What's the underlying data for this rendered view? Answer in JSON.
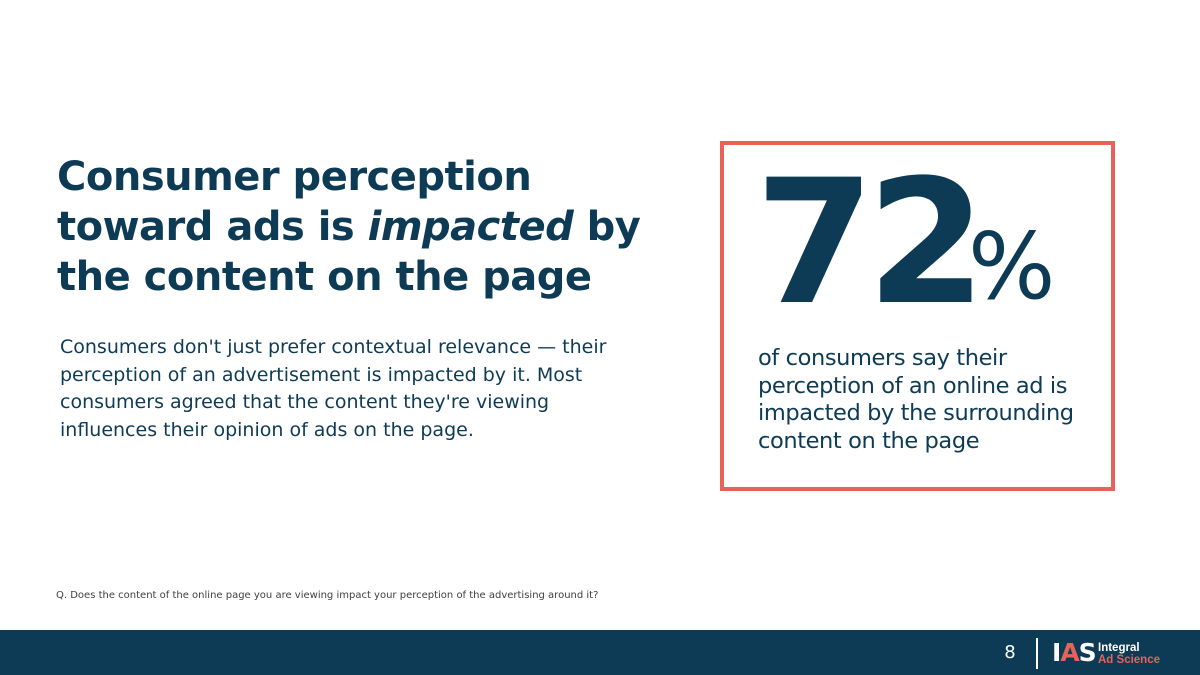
{
  "title": {
    "line1": "Consumer perception",
    "line2_start": "toward ads is ",
    "line2_emphasis": "impacted",
    "line2_end": " by",
    "line3": "the content on the page"
  },
  "body_text": "Consumers don't just prefer contextual relevance — their perception of an advertisement is impacted by it. Most consumers agreed that the content they're viewing influences their opinion of ads on the page.",
  "stat": {
    "number": "72",
    "unit": "%",
    "caption": "of consumers say their perception of an online ad is impacted by the surrounding content on the page"
  },
  "footnote": "Q. Does the content of the online page you are viewing impact your perception of the advertising around it?",
  "footer": {
    "page_number": "8",
    "logo_mark": "IAS",
    "logo_line1": "Integral",
    "logo_line2": "Ad Science"
  },
  "colors": {
    "navy": "#0d3b56",
    "coral": "#e8625a",
    "white": "#ffffff"
  }
}
